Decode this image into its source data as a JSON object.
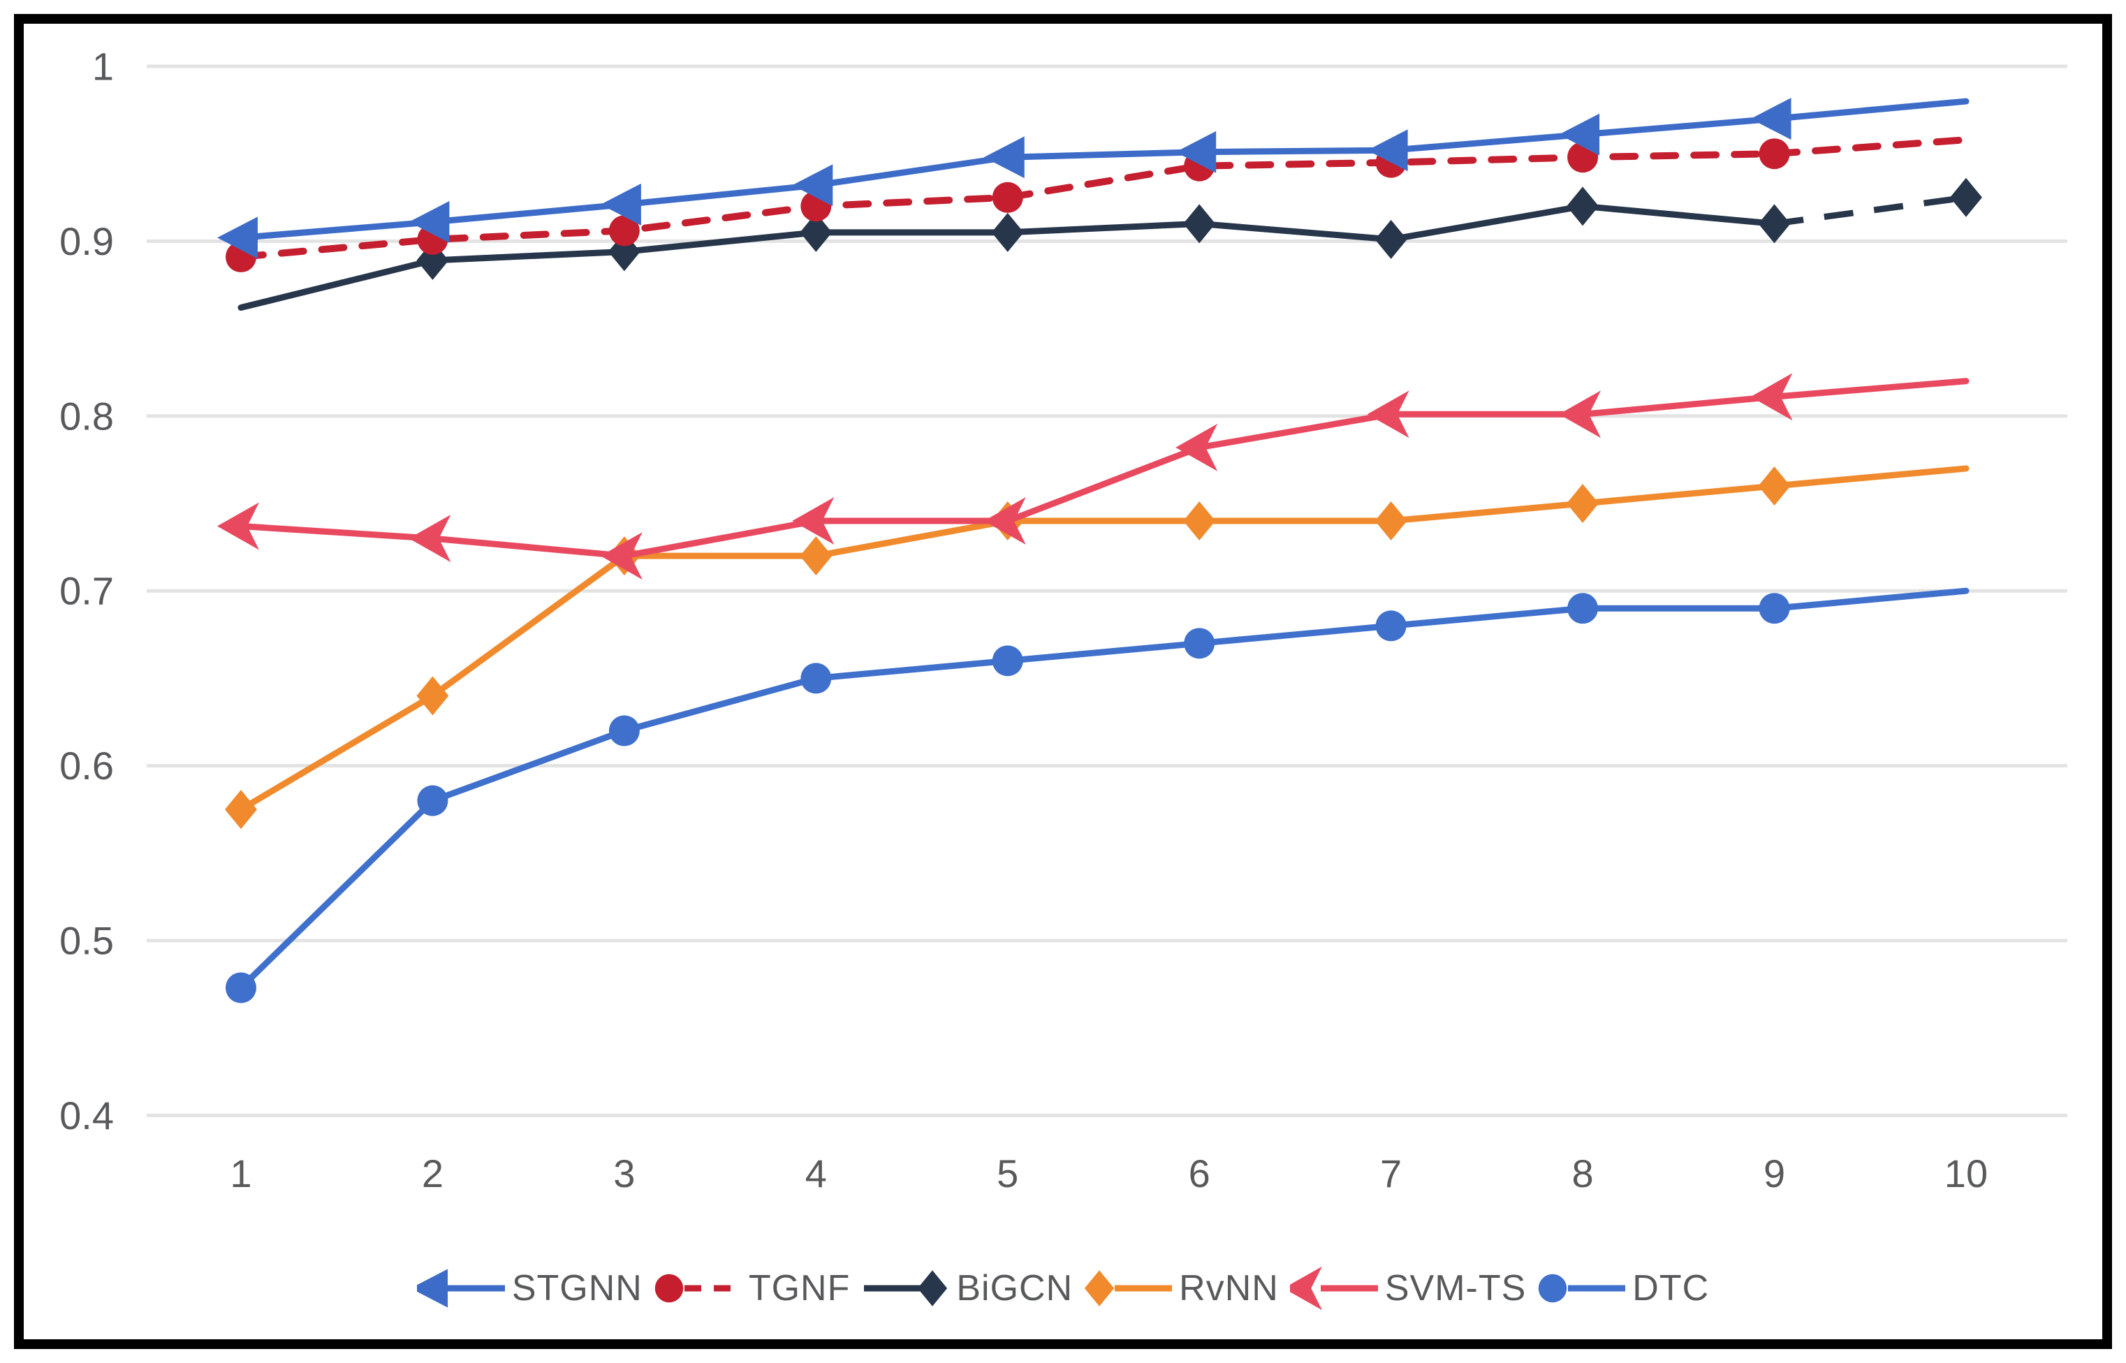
{
  "chart_data": {
    "type": "line",
    "title": "",
    "xlabel": "",
    "ylabel": "",
    "x": [
      1,
      2,
      3,
      4,
      5,
      6,
      7,
      8,
      9,
      10
    ],
    "x_ticklabels": [
      "1",
      "2",
      "3",
      "4",
      "5",
      "6",
      "7",
      "8",
      "9",
      "10"
    ],
    "y_ticklabels": [
      "1",
      "0.9",
      "0.8",
      "0.7",
      "0.6",
      "0.5",
      "0.4"
    ],
    "y_gridlines": [
      1.0,
      0.9,
      0.8,
      0.7,
      0.6,
      0.5,
      0.4
    ],
    "ylim": [
      0.4,
      1.0
    ],
    "grid": true,
    "legend_position": "bottom-center",
    "series": [
      {
        "name": "DTC",
        "color": "#3F70CC",
        "marker": "circle",
        "line": "solid",
        "legend_layout": "marker-left",
        "skip_first_marker": false,
        "skip_last_marker": true,
        "values": [
          0.473,
          0.58,
          0.62,
          0.65,
          0.66,
          0.67,
          0.68,
          0.69,
          0.69,
          0.7
        ]
      },
      {
        "name": "RvNN",
        "color": "#F08A2D",
        "marker": "diamond",
        "line": "solid",
        "legend_layout": "marker-left",
        "skip_first_marker": false,
        "skip_last_marker": true,
        "values": [
          0.575,
          0.64,
          0.72,
          0.72,
          0.74,
          0.74,
          0.74,
          0.75,
          0.76,
          0.77
        ]
      },
      {
        "name": "SVM-TS",
        "color": "#E9495F",
        "marker": "dart-left",
        "line": "solid",
        "legend_layout": "marker-left",
        "skip_first_marker": false,
        "skip_last_marker": true,
        "values": [
          0.737,
          0.73,
          0.72,
          0.74,
          0.74,
          0.782,
          0.801,
          0.801,
          0.811,
          0.82
        ]
      },
      {
        "name": "BiGCN",
        "color": "#27364B",
        "marker": "diamond",
        "line": "solid",
        "last_segment_dashed": true,
        "legend_layout": "marker-right",
        "skip_first_marker": true,
        "skip_last_marker": false,
        "values": [
          0.862,
          0.889,
          0.894,
          0.905,
          0.905,
          0.91,
          0.901,
          0.92,
          0.91,
          0.925
        ]
      },
      {
        "name": "TGNF",
        "color": "#C51E2E",
        "marker": "circle",
        "line": "dashed",
        "legend_layout": "marker-left",
        "skip_first_marker": false,
        "skip_last_marker": true,
        "values": [
          0.891,
          0.901,
          0.906,
          0.92,
          0.925,
          0.943,
          0.945,
          0.948,
          0.95,
          0.958
        ]
      },
      {
        "name": "STGNN",
        "color": "#3D6CC8",
        "marker": "arrow-left",
        "line": "solid",
        "legend_layout": "marker-left",
        "skip_first_marker": false,
        "skip_last_marker": true,
        "values": [
          0.902,
          0.911,
          0.921,
          0.932,
          0.948,
          0.951,
          0.952,
          0.961,
          0.97,
          0.98
        ]
      }
    ],
    "legend_order": [
      "STGNN",
      "TGNF",
      "BiGCN",
      "RvNN",
      "SVM-TS",
      "DTC"
    ],
    "colors": {
      "grid": "#E3E3E3",
      "tick_text": "#58595B",
      "frame": "#000000",
      "background": "#FFFFFF"
    }
  }
}
